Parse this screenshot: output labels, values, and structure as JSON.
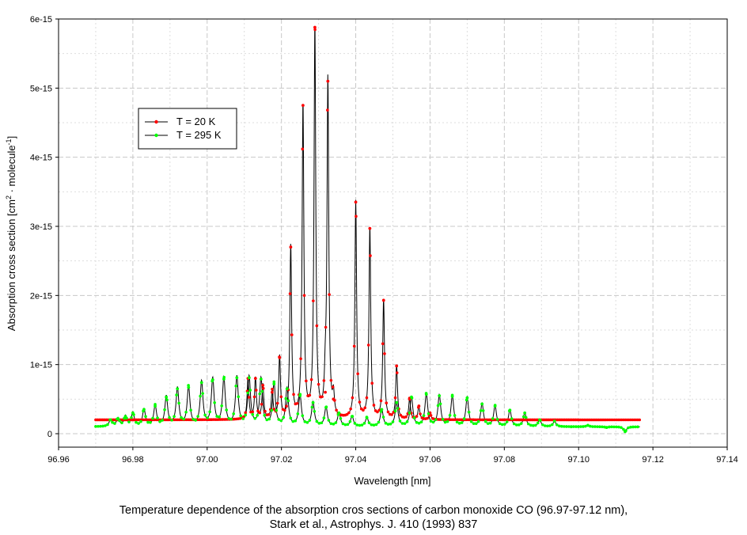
{
  "chart_data": {
    "type": "line",
    "title": "",
    "xlabel": "Wavelength [nm]",
    "ylabel_main": "Absorption cross section [cm",
    "ylabel_sup1": "2",
    "ylabel_mid": " · molecule",
    "ylabel_sup2": "-1",
    "ylabel_end": "]",
    "xlim": [
      96.96,
      97.14
    ],
    "ylim": [
      0,
      6e-15
    ],
    "x_ticks": [
      {
        "value": 96.96,
        "label": "96.96"
      },
      {
        "value": 96.98,
        "label": "96.98"
      },
      {
        "value": 97.0,
        "label": "97.00"
      },
      {
        "value": 97.02,
        "label": "97.02"
      },
      {
        "value": 97.04,
        "label": "97.04"
      },
      {
        "value": 97.06,
        "label": "97.06"
      },
      {
        "value": 97.08,
        "label": "97.08"
      },
      {
        "value": 97.1,
        "label": "97.10"
      },
      {
        "value": 97.12,
        "label": "97.12"
      },
      {
        "value": 97.14,
        "label": "97.14"
      }
    ],
    "y_ticks": [
      {
        "value": 0,
        "label": "0"
      },
      {
        "value": 1e-15,
        "label": "1e-15"
      },
      {
        "value": 2e-15,
        "label": "2e-15"
      },
      {
        "value": 3e-15,
        "label": "3e-15"
      },
      {
        "value": 4e-15,
        "label": "4e-15"
      },
      {
        "value": 5e-15,
        "label": "5e-15"
      },
      {
        "value": 6e-15,
        "label": "6e-15"
      }
    ],
    "grid": true,
    "legend_placement": "upper-left",
    "series": [
      {
        "name": "T = 20 K",
        "color": "#ff0000",
        "baseline": 2e-16,
        "peaks": [
          [
            97.011,
            8e-16
          ],
          [
            97.013,
            8e-16
          ],
          [
            97.015,
            7e-16
          ],
          [
            97.0175,
            6e-16
          ],
          [
            97.0195,
            1.1e-15
          ],
          [
            97.0225,
            2.7e-15
          ],
          [
            97.0258,
            4.75e-15
          ],
          [
            97.029,
            5.88e-15
          ],
          [
            97.0325,
            5.1e-15
          ],
          [
            97.0318,
            6e-16
          ],
          [
            97.034,
            5e-16
          ],
          [
            97.04,
            3.35e-15
          ],
          [
            97.0438,
            2.97e-15
          ],
          [
            97.0475,
            1.93e-15
          ],
          [
            97.051,
            9.8e-16
          ],
          [
            97.0545,
            5e-16
          ],
          [
            97.057,
            4e-16
          ],
          [
            97.06,
            3e-16
          ]
        ]
      },
      {
        "name": "T = 295 K",
        "color": "#00ff00",
        "baseline": 1e-16,
        "peaks": [
          [
            96.974,
            2e-16
          ],
          [
            96.976,
            2.2e-16
          ],
          [
            96.978,
            2.5e-16
          ],
          [
            96.98,
            3e-16
          ],
          [
            96.983,
            3.5e-16
          ],
          [
            96.986,
            4e-16
          ],
          [
            96.989,
            5.3e-16
          ],
          [
            96.992,
            6.5e-16
          ],
          [
            96.995,
            6.7e-16
          ],
          [
            96.9985,
            7.4e-16
          ],
          [
            97.0015,
            7.8e-16
          ],
          [
            97.0045,
            7.9e-16
          ],
          [
            97.008,
            8.1e-16
          ],
          [
            97.0113,
            8.1e-16
          ],
          [
            97.0145,
            7.9e-16
          ],
          [
            97.018,
            7.2e-16
          ],
          [
            97.0215,
            6.5e-16
          ],
          [
            97.025,
            5.5e-16
          ],
          [
            97.0285,
            4.5e-16
          ],
          [
            97.032,
            3.8e-16
          ],
          [
            97.0355,
            3e-16
          ],
          [
            97.039,
            2.5e-16
          ],
          [
            97.043,
            2.3e-16
          ],
          [
            97.047,
            3.5e-16
          ],
          [
            97.051,
            4.5e-16
          ],
          [
            97.055,
            5.3e-16
          ],
          [
            97.059,
            5.7e-16
          ],
          [
            97.0625,
            5.5e-16
          ],
          [
            97.066,
            5.4e-16
          ],
          [
            97.07,
            5.2e-16
          ],
          [
            97.074,
            4.3e-16
          ],
          [
            97.0775,
            4e-16
          ],
          [
            97.0815,
            3.4e-16
          ],
          [
            97.0855,
            3e-16
          ],
          [
            97.0895,
            2e-16
          ],
          [
            97.0935,
            1.8e-16
          ],
          [
            97.098,
            1e-16
          ],
          [
            97.1025,
            1.2e-16
          ],
          [
            97.1075,
            9e-17
          ],
          [
            97.1125,
            3e-17
          ]
        ]
      }
    ]
  },
  "caption": {
    "line1": "Temperature dependence of the absorption cros sections of carbon monoxide CO (96.97-97.12 nm),",
    "line2": "Stark et al., Astrophys. J. 410 (1993) 837"
  }
}
